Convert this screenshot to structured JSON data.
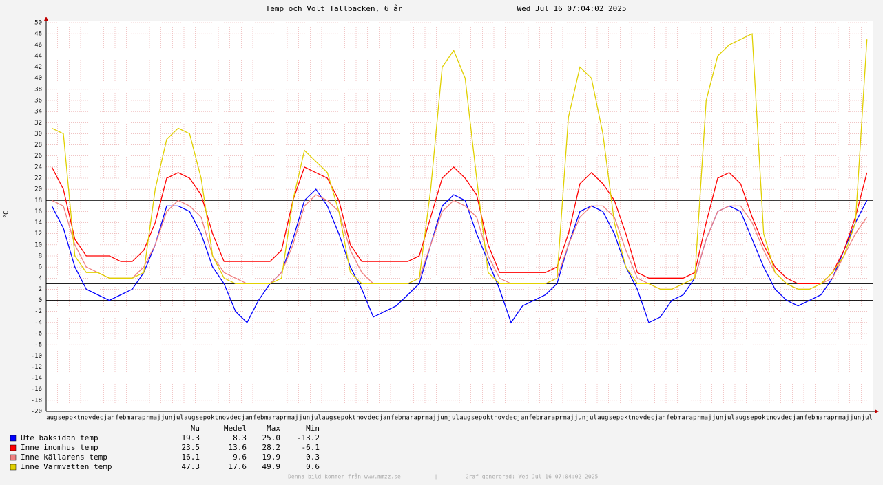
{
  "chart_data": {
    "type": "line",
    "title": "Temp och Volt Tallbacken, 6 år",
    "subtitle": "Wed Jul 16 07:04:02 2025",
    "y_label": "°C",
    "categories": [
      "aug",
      "sep",
      "okt",
      "nov",
      "dec",
      "jan",
      "feb",
      "mar",
      "apr",
      "maj",
      "jun",
      "jul",
      "aug",
      "sep",
      "okt",
      "nov",
      "dec",
      "jan",
      "feb",
      "mar",
      "apr",
      "maj",
      "jun",
      "jul",
      "aug",
      "sep",
      "okt",
      "nov",
      "dec",
      "jan",
      "feb",
      "mar",
      "apr",
      "maj",
      "jun",
      "jul",
      "aug",
      "sep",
      "okt",
      "nov",
      "dec",
      "jan",
      "feb",
      "mar",
      "apr",
      "maj",
      "jun",
      "jul",
      "aug",
      "sep",
      "okt",
      "nov",
      "dec",
      "jan",
      "feb",
      "mar",
      "apr",
      "maj",
      "jun",
      "jul",
      "aug",
      "sep",
      "okt",
      "nov",
      "dec",
      "jan",
      "feb",
      "mar",
      "apr",
      "maj",
      "jun",
      "jul"
    ],
    "ylim": [
      -20,
      50
    ],
    "yticks": [
      -20,
      -18,
      -16,
      -14,
      -12,
      -10,
      -8,
      -6,
      -4,
      -2,
      0,
      2,
      4,
      6,
      8,
      10,
      12,
      14,
      16,
      18,
      20,
      22,
      24,
      26,
      28,
      30,
      32,
      34,
      36,
      38,
      40,
      42,
      44,
      46,
      48,
      50
    ],
    "grid": true,
    "hlines": [
      18,
      3,
      0
    ],
    "series": [
      {
        "name": "Ute baksidan temp",
        "color": "#0000ff",
        "stats": [
          "19.3",
          "8.3",
          "25.0",
          "-13.2"
        ],
        "values": [
          17,
          13,
          6,
          2,
          1,
          0,
          1,
          2,
          5,
          10,
          17,
          17,
          16,
          12,
          6,
          3,
          -2,
          -4,
          0,
          3,
          5,
          11,
          18,
          20,
          17,
          12,
          6,
          2,
          -3,
          -2,
          -1,
          1,
          3,
          10,
          17,
          19,
          18,
          12,
          7,
          2,
          -4,
          -1,
          0,
          1,
          3,
          10,
          16,
          17,
          16,
          12,
          6,
          2,
          -4,
          -3,
          0,
          1,
          4,
          11,
          16,
          17,
          16,
          11,
          6,
          2,
          0,
          -1,
          0,
          1,
          4,
          9,
          14,
          18
        ]
      },
      {
        "name": "Inne inomhus temp",
        "color": "#ff0000",
        "stats": [
          "23.5",
          "13.6",
          "28.2",
          "-6.1"
        ],
        "values": [
          24,
          20,
          11,
          8,
          8,
          8,
          7,
          7,
          9,
          14,
          22,
          23,
          22,
          19,
          12,
          7,
          7,
          7,
          7,
          7,
          9,
          18,
          24,
          23,
          22,
          18,
          10,
          7,
          7,
          7,
          7,
          7,
          8,
          15,
          22,
          24,
          22,
          19,
          10,
          5,
          5,
          5,
          5,
          5,
          6,
          12,
          21,
          23,
          21,
          18,
          12,
          5,
          4,
          4,
          4,
          4,
          5,
          14,
          22,
          23,
          21,
          15,
          10,
          6,
          4,
          3,
          3,
          3,
          5,
          9,
          15,
          23
        ]
      },
      {
        "name": "Inne källarens temp",
        "color": "#f08080",
        "stats": [
          "16.1",
          "9.6",
          "19.9",
          "0.3"
        ],
        "values": [
          18,
          17,
          10,
          6,
          5,
          4,
          4,
          4,
          6,
          10,
          16,
          18,
          17,
          15,
          8,
          5,
          4,
          3,
          3,
          3,
          5,
          10,
          17,
          19,
          18,
          16,
          9,
          5,
          3,
          3,
          3,
          3,
          4,
          10,
          16,
          18,
          17,
          15,
          8,
          4,
          3,
          3,
          3,
          3,
          4,
          10,
          15,
          17,
          17,
          15,
          9,
          4,
          3,
          2,
          2,
          3,
          4,
          11,
          16,
          17,
          17,
          14,
          9,
          5,
          3,
          2,
          2,
          3,
          4,
          8,
          12,
          15
        ]
      },
      {
        "name": "Inne Varmvatten temp",
        "color": "#e0d000",
        "stats": [
          "47.3",
          "17.6",
          "49.9",
          "0.6"
        ],
        "values": [
          31,
          30,
          8,
          5,
          5,
          4,
          4,
          4,
          5,
          20,
          29,
          31,
          30,
          22,
          8,
          4,
          3,
          3,
          3,
          3,
          4,
          18,
          27,
          25,
          23,
          16,
          5,
          3,
          3,
          3,
          3,
          3,
          4,
          20,
          42,
          45,
          40,
          22,
          5,
          3,
          3,
          3,
          3,
          3,
          4,
          33,
          42,
          40,
          30,
          14,
          6,
          3,
          3,
          2,
          2,
          3,
          4,
          36,
          44,
          46,
          47,
          48,
          12,
          5,
          3,
          2,
          2,
          3,
          5,
          8,
          14,
          47
        ]
      }
    ],
    "legend_header": [
      "Nu",
      "Medel",
      "Max",
      "Min"
    ],
    "footer": [
      "Denna bild kommer från www.mmzz.se",
      "|",
      "Graf genererad: Wed Jul 16 07:04:02 2025"
    ]
  }
}
